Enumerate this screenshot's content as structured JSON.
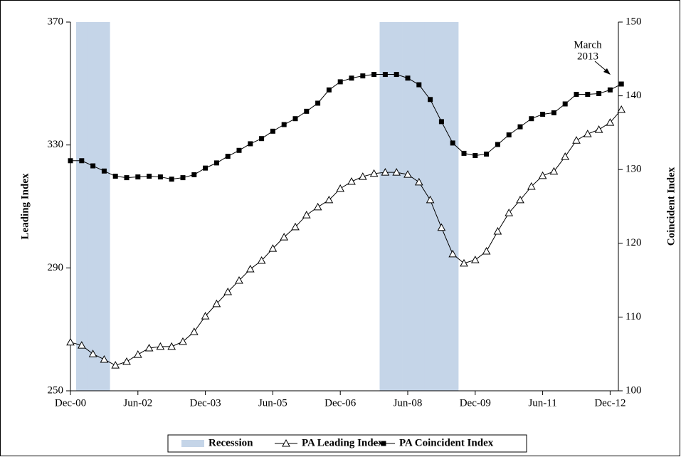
{
  "chart_data": {
    "type": "line",
    "y_label": "Leading Index",
    "y2_label": "Coincident Index",
    "annotation": [
      "March",
      "2013"
    ],
    "categories": [
      "Dec-00",
      null,
      null,
      null,
      null,
      null,
      "Jun-02",
      null,
      null,
      null,
      null,
      null,
      "Dec-03",
      null,
      null,
      null,
      null,
      null,
      "Jun-05",
      null,
      null,
      null,
      null,
      null,
      "Dec-06",
      null,
      null,
      null,
      null,
      null,
      "Jun-08",
      null,
      null,
      null,
      null,
      null,
      "Dec-09",
      null,
      null,
      null,
      null,
      null,
      "Jun-11",
      null,
      null,
      null,
      null,
      null,
      "Dec-12",
      null
    ],
    "ylim": [
      250,
      370
    ],
    "yticks": [
      250,
      290,
      330,
      370
    ],
    "y2lim": [
      100,
      150
    ],
    "y2ticks": [
      100,
      110,
      120,
      130,
      140,
      150
    ],
    "series": [
      {
        "name": "Recession",
        "type": "bar",
        "color": "#c5d5e8",
        "values": [
          null,
          370,
          370,
          370,
          null,
          null,
          null,
          null,
          null,
          null,
          null,
          null,
          null,
          null,
          null,
          null,
          null,
          null,
          null,
          null,
          null,
          null,
          null,
          null,
          null,
          null,
          null,
          null,
          370,
          370,
          370,
          370,
          370,
          370,
          370,
          null,
          null,
          null,
          null,
          null,
          null,
          null,
          null,
          null,
          null,
          null,
          null,
          null,
          null,
          null
        ]
      },
      {
        "name": "PA Leading Index",
        "type": "line",
        "marker": "triangle",
        "color": "#000000",
        "values": [
          265.8,
          264.8,
          262.0,
          260.2,
          258.3,
          259.5,
          261.8,
          263.9,
          264.4,
          264.4,
          266.0,
          269.2,
          274.3,
          278.3,
          282.2,
          285.9,
          289.6,
          292.4,
          296.3,
          300.0,
          303.3,
          307.2,
          309.8,
          312.1,
          315.8,
          318.1,
          319.7,
          320.7,
          321.1,
          321.1,
          320.4,
          317.9,
          312.1,
          303.1,
          294.5,
          291.5,
          292.6,
          295.4,
          301.9,
          307.9,
          312.1,
          316.5,
          320.0,
          321.4,
          326.2,
          331.5,
          333.6,
          335.0,
          337.3,
          341.5
        ]
      },
      {
        "name": "PA Coincident Index",
        "type": "line",
        "marker": "square",
        "axis": "y2",
        "color": "#000000",
        "values": [
          131.2,
          131.2,
          130.5,
          129.8,
          129.1,
          128.9,
          129.0,
          129.1,
          129.0,
          128.7,
          128.9,
          129.3,
          130.2,
          130.9,
          131.8,
          132.6,
          133.5,
          134.2,
          135.2,
          136.1,
          136.9,
          137.9,
          139.0,
          140.8,
          141.9,
          142.4,
          142.7,
          142.9,
          142.9,
          142.9,
          142.4,
          141.5,
          139.5,
          136.5,
          133.6,
          132.2,
          131.9,
          132.1,
          133.4,
          134.7,
          135.8,
          136.9,
          137.5,
          137.7,
          138.9,
          140.2,
          140.2,
          140.3,
          140.8,
          141.6
        ]
      }
    ]
  }
}
